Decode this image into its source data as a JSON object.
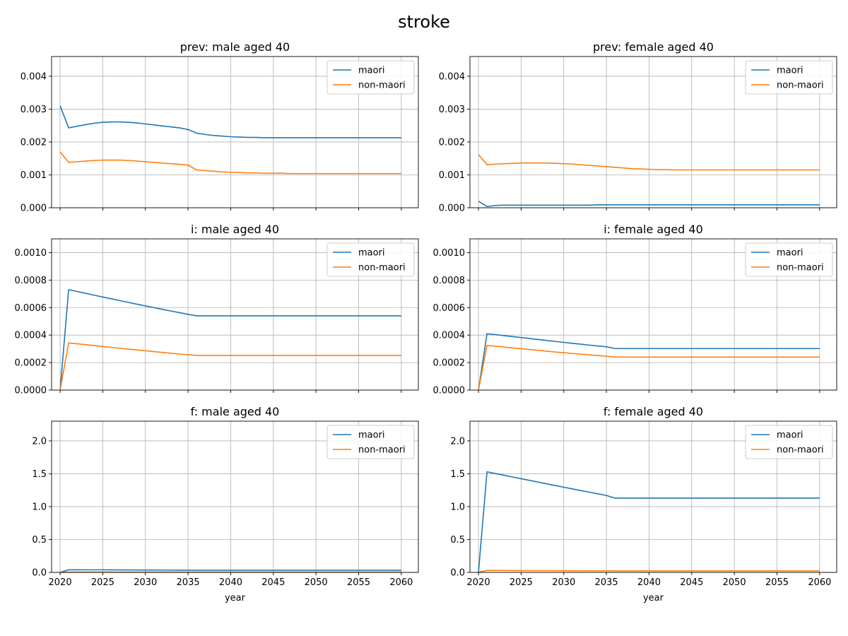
{
  "suptitle": "stroke",
  "colors": {
    "maori": "#1f77b4",
    "non_maori": "#ff7f0e",
    "grid": "#b0b0b0"
  },
  "x_years": [
    2020,
    2021,
    2022,
    2023,
    2024,
    2025,
    2026,
    2027,
    2028,
    2029,
    2030,
    2031,
    2032,
    2033,
    2034,
    2035,
    2036,
    2037,
    2038,
    2039,
    2040,
    2041,
    2042,
    2043,
    2044,
    2045,
    2046,
    2047,
    2048,
    2049,
    2050,
    2051,
    2052,
    2053,
    2054,
    2055,
    2056,
    2057,
    2058,
    2059,
    2060
  ],
  "chart_data": [
    {
      "type": "line",
      "title": "prev: male aged 40",
      "xlabel": "",
      "ylabel": "",
      "xlim": [
        2019,
        2062
      ],
      "ylim": [
        0,
        0.0046
      ],
      "xticks": [
        2020,
        2025,
        2030,
        2035,
        2040,
        2045,
        2050,
        2055,
        2060
      ],
      "xtick_labels_shown": false,
      "yticks": [
        0.0,
        0.001,
        0.002,
        0.003,
        0.004
      ],
      "ytick_labels": [
        "0.000",
        "0.001",
        "0.002",
        "0.003",
        "0.004"
      ],
      "grid": true,
      "legend": "top-right",
      "series": [
        {
          "name": "maori",
          "values": [
            0.0031,
            0.00243,
            0.00248,
            0.00253,
            0.00257,
            0.0026,
            0.00261,
            0.00261,
            0.0026,
            0.00258,
            0.00255,
            0.00252,
            0.00249,
            0.00246,
            0.00243,
            0.00238,
            0.00227,
            0.00223,
            0.0022,
            0.00218,
            0.00216,
            0.00215,
            0.00214,
            0.00214,
            0.00213,
            0.00213,
            0.00213,
            0.00213,
            0.00213,
            0.00213,
            0.00213,
            0.00213,
            0.00213,
            0.00213,
            0.00213,
            0.00213,
            0.00213,
            0.00213,
            0.00213,
            0.00213,
            0.00213
          ]
        },
        {
          "name": "non-maori",
          "values": [
            0.0017,
            0.00138,
            0.0014,
            0.00142,
            0.00144,
            0.00145,
            0.00145,
            0.00145,
            0.00144,
            0.00142,
            0.0014,
            0.00138,
            0.00136,
            0.00134,
            0.00132,
            0.0013,
            0.00115,
            0.00113,
            0.00111,
            0.00109,
            0.00108,
            0.00107,
            0.00106,
            0.00106,
            0.00105,
            0.00105,
            0.00105,
            0.00104,
            0.00104,
            0.00104,
            0.00104,
            0.00104,
            0.00104,
            0.00104,
            0.00104,
            0.00104,
            0.00104,
            0.00104,
            0.00104,
            0.00104,
            0.00104
          ]
        }
      ]
    },
    {
      "type": "line",
      "title": "prev: female aged 40",
      "xlabel": "",
      "ylabel": "",
      "xlim": [
        2019,
        2062
      ],
      "ylim": [
        0,
        0.0046
      ],
      "xticks": [
        2020,
        2025,
        2030,
        2035,
        2040,
        2045,
        2050,
        2055,
        2060
      ],
      "xtick_labels_shown": false,
      "yticks": [
        0.0,
        0.001,
        0.002,
        0.003,
        0.004
      ],
      "ytick_labels": [
        "0.000",
        "0.001",
        "0.002",
        "0.003",
        "0.004"
      ],
      "grid": true,
      "legend": "top-right",
      "series": [
        {
          "name": "maori",
          "values": [
            0.0002,
            4e-05,
            7e-05,
            8e-05,
            8e-05,
            8e-05,
            8e-05,
            8e-05,
            8e-05,
            8e-05,
            8e-05,
            8e-05,
            8e-05,
            8e-05,
            9e-05,
            9e-05,
            9e-05,
            9e-05,
            9e-05,
            9e-05,
            9e-05,
            9e-05,
            9e-05,
            9e-05,
            9e-05,
            9e-05,
            9e-05,
            9e-05,
            9e-05,
            9e-05,
            9e-05,
            9e-05,
            9e-05,
            9e-05,
            9e-05,
            9e-05,
            9e-05,
            9e-05,
            9e-05,
            9e-05,
            9e-05
          ]
        },
        {
          "name": "non-maori",
          "values": [
            0.00162,
            0.00131,
            0.00133,
            0.00134,
            0.00135,
            0.00136,
            0.00136,
            0.00136,
            0.00136,
            0.00135,
            0.00134,
            0.00133,
            0.00131,
            0.00129,
            0.00127,
            0.00125,
            0.00123,
            0.00121,
            0.00119,
            0.00118,
            0.00117,
            0.00116,
            0.00116,
            0.00115,
            0.00115,
            0.00115,
            0.00115,
            0.00115,
            0.00115,
            0.00115,
            0.00115,
            0.00115,
            0.00115,
            0.00115,
            0.00115,
            0.00115,
            0.00115,
            0.00115,
            0.00115,
            0.00115,
            0.00115
          ]
        }
      ]
    },
    {
      "type": "line",
      "title": "i: male aged 40",
      "xlabel": "",
      "ylabel": "",
      "xlim": [
        2019,
        2062
      ],
      "ylim": [
        0,
        0.0011
      ],
      "xticks": [
        2020,
        2025,
        2030,
        2035,
        2040,
        2045,
        2050,
        2055,
        2060
      ],
      "xtick_labels_shown": false,
      "yticks": [
        0.0,
        0.0002,
        0.0004,
        0.0006,
        0.0008,
        0.001
      ],
      "ytick_labels": [
        "0.0000",
        "0.0002",
        "0.0004",
        "0.0006",
        "0.0008",
        "0.0010"
      ],
      "grid": true,
      "legend": "top-right",
      "series": [
        {
          "name": "maori",
          "values": [
            0.0,
            0.00073,
            0.000717,
            0.000704,
            0.00069,
            0.000677,
            0.000664,
            0.000651,
            0.000638,
            0.000625,
            0.000612,
            0.0006,
            0.000587,
            0.000575,
            0.000563,
            0.000551,
            0.00054,
            0.00054,
            0.00054,
            0.00054,
            0.00054,
            0.00054,
            0.00054,
            0.00054,
            0.00054,
            0.00054,
            0.00054,
            0.00054,
            0.00054,
            0.00054,
            0.00054,
            0.00054,
            0.00054,
            0.00054,
            0.00054,
            0.00054,
            0.00054,
            0.00054,
            0.00054,
            0.00054,
            0.00054
          ]
        },
        {
          "name": "non-maori",
          "values": [
            0.0,
            0.000343,
            0.000337,
            0.00033,
            0.000324,
            0.000317,
            0.000311,
            0.000304,
            0.000298,
            0.000292,
            0.000286,
            0.00028,
            0.000274,
            0.000268,
            0.000262,
            0.000257,
            0.000252,
            0.000252,
            0.000252,
            0.000252,
            0.000252,
            0.000252,
            0.000252,
            0.000252,
            0.000252,
            0.000252,
            0.000252,
            0.000252,
            0.000252,
            0.000252,
            0.000252,
            0.000252,
            0.000252,
            0.000252,
            0.000252,
            0.000252,
            0.000252,
            0.000252,
            0.000252,
            0.000252,
            0.000252
          ]
        }
      ]
    },
    {
      "type": "line",
      "title": "i: female aged 40",
      "xlabel": "",
      "ylabel": "",
      "xlim": [
        2019,
        2062
      ],
      "ylim": [
        0,
        0.0011
      ],
      "xticks": [
        2020,
        2025,
        2030,
        2035,
        2040,
        2045,
        2050,
        2055,
        2060
      ],
      "xtick_labels_shown": false,
      "yticks": [
        0.0,
        0.0002,
        0.0004,
        0.0006,
        0.0008,
        0.001
      ],
      "ytick_labels": [
        "0.0000",
        "0.0002",
        "0.0004",
        "0.0006",
        "0.0008",
        "0.0010"
      ],
      "grid": true,
      "legend": "top-right",
      "series": [
        {
          "name": "maori",
          "values": [
            0.0,
            0.00041,
            0.000403,
            0.000396,
            0.000389,
            0.000382,
            0.000375,
            0.000368,
            0.000361,
            0.000354,
            0.000347,
            0.00034,
            0.000334,
            0.000327,
            0.000321,
            0.000315,
            0.000302,
            0.000302,
            0.000302,
            0.000302,
            0.000302,
            0.000302,
            0.000302,
            0.000302,
            0.000302,
            0.000302,
            0.000302,
            0.000302,
            0.000302,
            0.000302,
            0.000302,
            0.000302,
            0.000302,
            0.000302,
            0.000302,
            0.000302,
            0.000302,
            0.000302,
            0.000302,
            0.000302,
            0.000302
          ]
        },
        {
          "name": "non-maori",
          "values": [
            0.0,
            0.000325,
            0.000319,
            0.000313,
            0.000307,
            0.000301,
            0.000295,
            0.000289,
            0.000283,
            0.000277,
            0.000272,
            0.000266,
            0.000261,
            0.000256,
            0.000251,
            0.000246,
            0.00024,
            0.00024,
            0.00024,
            0.00024,
            0.00024,
            0.00024,
            0.00024,
            0.00024,
            0.00024,
            0.00024,
            0.00024,
            0.00024,
            0.00024,
            0.00024,
            0.00024,
            0.00024,
            0.00024,
            0.00024,
            0.00024,
            0.00024,
            0.00024,
            0.00024,
            0.00024,
            0.00024,
            0.00024
          ]
        }
      ]
    },
    {
      "type": "line",
      "title": "f: male aged 40",
      "xlabel": "year",
      "ylabel": "",
      "xlim": [
        2019,
        2062
      ],
      "ylim": [
        0,
        2.3
      ],
      "xticks": [
        2020,
        2025,
        2030,
        2035,
        2040,
        2045,
        2050,
        2055,
        2060
      ],
      "xtick_labels_shown": true,
      "yticks": [
        0.0,
        0.5,
        1.0,
        1.5,
        2.0
      ],
      "ytick_labels": [
        "0.0",
        "0.5",
        "1.0",
        "1.5",
        "2.0"
      ],
      "grid": true,
      "legend": "top-right",
      "series": [
        {
          "name": "maori",
          "values": [
            0.0,
            0.04,
            0.04,
            0.039,
            0.039,
            0.039,
            0.038,
            0.038,
            0.037,
            0.037,
            0.036,
            0.036,
            0.035,
            0.035,
            0.034,
            0.034,
            0.033,
            0.033,
            0.033,
            0.033,
            0.033,
            0.033,
            0.033,
            0.033,
            0.033,
            0.033,
            0.033,
            0.033,
            0.033,
            0.033,
            0.033,
            0.033,
            0.033,
            0.033,
            0.033,
            0.033,
            0.033,
            0.033,
            0.033,
            0.033,
            0.033
          ]
        },
        {
          "name": "non-maori",
          "values": [
            0.0,
            0.005,
            0.005,
            0.005,
            0.005,
            0.005,
            0.005,
            0.005,
            0.005,
            0.005,
            0.005,
            0.005,
            0.005,
            0.005,
            0.005,
            0.005,
            0.005,
            0.005,
            0.005,
            0.005,
            0.005,
            0.005,
            0.005,
            0.005,
            0.005,
            0.005,
            0.005,
            0.005,
            0.005,
            0.005,
            0.005,
            0.005,
            0.005,
            0.005,
            0.005,
            0.005,
            0.005,
            0.005,
            0.005,
            0.005,
            0.005
          ]
        }
      ]
    },
    {
      "type": "line",
      "title": "f: female aged 40",
      "xlabel": "year",
      "ylabel": "",
      "xlim": [
        2019,
        2062
      ],
      "ylim": [
        0,
        2.3
      ],
      "xticks": [
        2020,
        2025,
        2030,
        2035,
        2040,
        2045,
        2050,
        2055,
        2060
      ],
      "xtick_labels_shown": true,
      "yticks": [
        0.0,
        0.5,
        1.0,
        1.5,
        2.0
      ],
      "ytick_labels": [
        "0.0",
        "0.5",
        "1.0",
        "1.5",
        "2.0"
      ],
      "grid": true,
      "legend": "top-right",
      "series": [
        {
          "name": "maori",
          "values": [
            0.0,
            1.53,
            1.503,
            1.477,
            1.451,
            1.425,
            1.399,
            1.373,
            1.347,
            1.321,
            1.295,
            1.27,
            1.245,
            1.22,
            1.195,
            1.17,
            1.13,
            1.13,
            1.13,
            1.13,
            1.13,
            1.13,
            1.13,
            1.13,
            1.13,
            1.13,
            1.13,
            1.13,
            1.13,
            1.13,
            1.13,
            1.13,
            1.13,
            1.13,
            1.13,
            1.13,
            1.13,
            1.13,
            1.13,
            1.13,
            1.13
          ]
        },
        {
          "name": "non-maori",
          "values": [
            0.0,
            0.03,
            0.03,
            0.029,
            0.029,
            0.028,
            0.028,
            0.027,
            0.027,
            0.026,
            0.026,
            0.025,
            0.025,
            0.024,
            0.024,
            0.023,
            0.022,
            0.022,
            0.022,
            0.022,
            0.022,
            0.022,
            0.022,
            0.022,
            0.022,
            0.022,
            0.022,
            0.022,
            0.022,
            0.022,
            0.022,
            0.022,
            0.022,
            0.022,
            0.022,
            0.022,
            0.022,
            0.022,
            0.022,
            0.022,
            0.022
          ]
        }
      ]
    }
  ]
}
